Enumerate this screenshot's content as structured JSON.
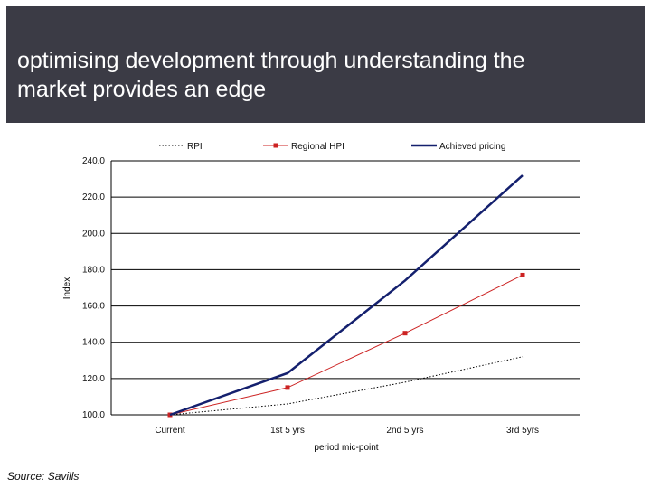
{
  "header": {
    "title": "optimising development through understanding the\nmarket provides an edge"
  },
  "source": "Source: Savills",
  "colors": {
    "header_bg": "#3b3b45",
    "rpi": "#000000",
    "regional_hpi": "#cc2222",
    "achieved": "#14206e",
    "grid": "#000000"
  },
  "chart_data": {
    "type": "line",
    "title": "",
    "xlabel": "period mic-point",
    "ylabel": "Index",
    "categories": [
      "Current",
      "1st 5 yrs",
      "2nd 5 yrs",
      "3rd 5yrs"
    ],
    "ylim": [
      100,
      240
    ],
    "yticks": [
      100,
      120,
      140,
      160,
      180,
      200,
      220,
      240
    ],
    "ytick_labels": [
      "100.0",
      "120.0",
      "140.0",
      "160.0",
      "180.0",
      "200.0",
      "220.0",
      "240.0"
    ],
    "grid": true,
    "legend": "top",
    "series": [
      {
        "name": "RPI",
        "values": [
          100,
          106,
          118,
          132
        ],
        "style": "dotted",
        "color": "#000000"
      },
      {
        "name": "Regional HPI",
        "values": [
          100,
          115,
          145,
          177
        ],
        "style": "line-marker",
        "color": "#cc2222"
      },
      {
        "name": "Achieved pricing",
        "values": [
          100,
          123,
          174,
          232
        ],
        "style": "thick",
        "color": "#14206e"
      }
    ]
  }
}
